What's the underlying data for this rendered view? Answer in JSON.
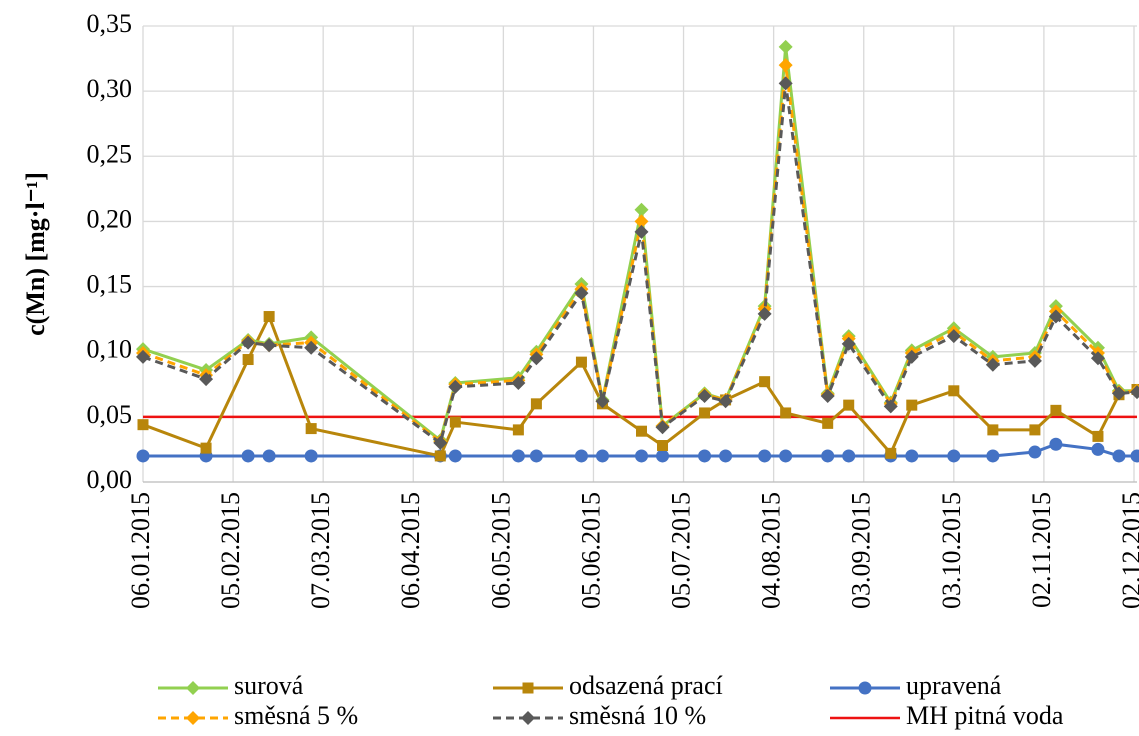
{
  "chart_data": {
    "type": "line",
    "y_label": "c(Mn) [mg·l⁻¹]",
    "x": [
      "2015-01-06",
      "2015-01-27",
      "2015-02-10",
      "2015-02-17",
      "2015-03-03",
      "2015-04-15",
      "2015-04-20",
      "2015-05-11",
      "2015-05-17",
      "2015-06-01",
      "2015-06-08",
      "2015-06-21",
      "2015-06-28",
      "2015-07-12",
      "2015-07-19",
      "2015-08-01",
      "2015-08-08",
      "2015-08-22",
      "2015-08-29",
      "2015-09-12",
      "2015-09-19",
      "2015-10-03",
      "2015-10-16",
      "2015-10-30",
      "2015-11-06",
      "2015-11-20",
      "2015-11-27",
      "2015-12-03"
    ],
    "xlim": [
      "2015-01-06",
      "2015-12-03"
    ],
    "xticks": [
      {
        "value": "2015-01-06",
        "label": "06.01.2015"
      },
      {
        "value": "2015-02-05",
        "label": "05.02.2015"
      },
      {
        "value": "2015-03-07",
        "label": "07.03.2015"
      },
      {
        "value": "2015-04-06",
        "label": "06.04.2015"
      },
      {
        "value": "2015-05-06",
        "label": "06.05.2015"
      },
      {
        "value": "2015-06-05",
        "label": "05.06.2015"
      },
      {
        "value": "2015-07-05",
        "label": "05.07.2015"
      },
      {
        "value": "2015-08-04",
        "label": "04.08.2015"
      },
      {
        "value": "2015-09-03",
        "label": "03.09.2015"
      },
      {
        "value": "2015-10-03",
        "label": "03.10.2015"
      },
      {
        "value": "2015-11-02",
        "label": "02.11.2015"
      },
      {
        "value": "2015-12-02",
        "label": "02.12.2015"
      }
    ],
    "ylim": [
      0,
      0.35
    ],
    "yticks": [
      {
        "value": 0,
        "label": "0,00"
      },
      {
        "value": 0.05,
        "label": "0,05"
      },
      {
        "value": 0.1,
        "label": "0,10"
      },
      {
        "value": 0.15,
        "label": "0,15"
      },
      {
        "value": 0.2,
        "label": "0,20"
      },
      {
        "value": 0.25,
        "label": "0,25"
      },
      {
        "value": 0.3,
        "label": "0,30"
      },
      {
        "value": 0.35,
        "label": "0,35"
      }
    ],
    "grid": true,
    "series": [
      {
        "name": "surová",
        "color": "#92d050",
        "marker": "diamond",
        "dashed": false,
        "values": [
          0.102,
          0.086,
          0.109,
          0.106,
          0.111,
          0.032,
          0.076,
          0.08,
          0.1,
          0.152,
          0.063,
          0.209,
          0.043,
          0.068,
          0.063,
          0.135,
          0.334,
          0.068,
          0.112,
          0.061,
          0.101,
          0.118,
          0.096,
          0.099,
          0.135,
          0.103,
          0.07,
          0.07
        ]
      },
      {
        "name": "odsazená prací",
        "color": "#b8860b",
        "marker": "square",
        "dashed": false,
        "values": [
          0.044,
          0.026,
          0.094,
          0.127,
          0.041,
          0.02,
          0.046,
          0.04,
          0.06,
          0.092,
          0.06,
          0.039,
          0.028,
          0.053,
          0.063,
          0.077,
          0.053,
          0.045,
          0.059,
          0.022,
          0.059,
          0.07,
          0.04,
          0.04,
          0.055,
          0.035,
          0.067,
          0.071
        ]
      },
      {
        "name": "upravená",
        "color": "#4472c4",
        "marker": "circle",
        "dashed": false,
        "values": [
          0.02,
          0.02,
          0.02,
          0.02,
          0.02,
          0.02,
          0.02,
          0.02,
          0.02,
          0.02,
          0.02,
          0.02,
          0.02,
          0.02,
          0.02,
          0.02,
          0.02,
          0.02,
          0.02,
          0.02,
          0.02,
          0.02,
          0.02,
          0.023,
          0.029,
          0.025,
          0.02,
          0.02
        ]
      },
      {
        "name": "směsná 5 %",
        "color": "#ffa500",
        "marker": "diamond",
        "dashed": true,
        "values": [
          0.099,
          0.082,
          0.108,
          0.105,
          0.107,
          0.031,
          0.075,
          0.078,
          0.098,
          0.148,
          0.062,
          0.2,
          0.043,
          0.067,
          0.063,
          0.133,
          0.32,
          0.067,
          0.11,
          0.06,
          0.099,
          0.115,
          0.093,
          0.096,
          0.131,
          0.099,
          0.069,
          0.07
        ]
      },
      {
        "name": "směsná 10 %",
        "color": "#595959",
        "marker": "diamond",
        "dashed": true,
        "values": [
          0.096,
          0.079,
          0.107,
          0.105,
          0.103,
          0.03,
          0.073,
          0.076,
          0.095,
          0.145,
          0.062,
          0.192,
          0.042,
          0.066,
          0.062,
          0.129,
          0.306,
          0.066,
          0.106,
          0.058,
          0.096,
          0.112,
          0.09,
          0.093,
          0.127,
          0.095,
          0.068,
          0.069
        ]
      }
    ],
    "hlines": [
      {
        "name": "MH pitná voda",
        "color": "#ee1111",
        "value": 0.05
      }
    ]
  }
}
